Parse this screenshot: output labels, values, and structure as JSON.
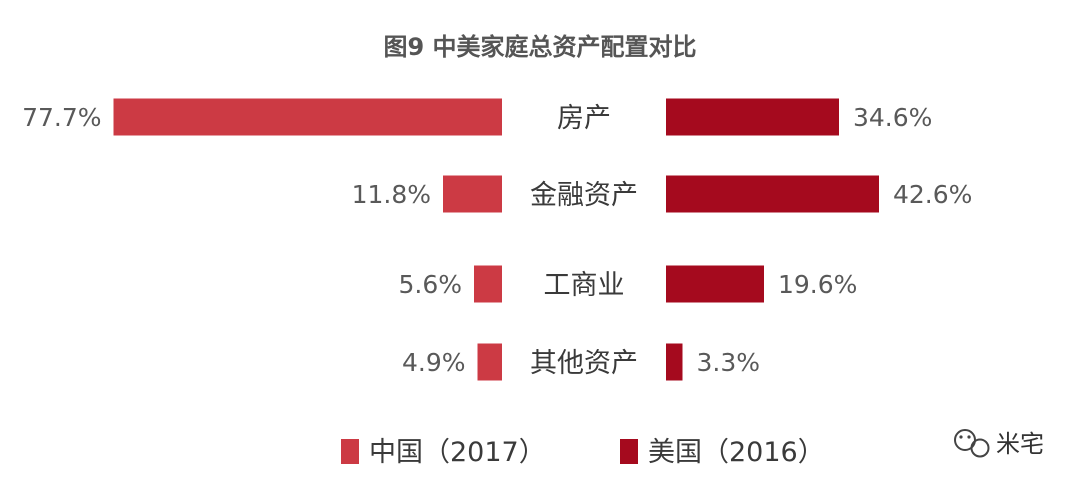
{
  "chart_data": {
    "type": "bar",
    "orientation": "horizontal-butterfly",
    "title": "图9 中美家庭总资产配置对比",
    "categories": [
      "房产",
      "金融资产",
      "工商业",
      "其他资产"
    ],
    "series": [
      {
        "name": "中国（2017）",
        "values": [
          77.7,
          11.8,
          5.6,
          4.9
        ],
        "labels": [
          "77.7%",
          "11.8%",
          "5.6%",
          "4.9%"
        ],
        "color": "#cc3a44"
      },
      {
        "name": "美国（2016）",
        "values": [
          34.6,
          42.6,
          19.6,
          3.3
        ],
        "labels": [
          "34.6%",
          "42.6%",
          "19.6%",
          "3.3%"
        ],
        "color": "#a50a1e"
      }
    ],
    "unit": "%",
    "grid": false,
    "legend_position": "bottom-center"
  },
  "watermark": {
    "text": "米宅",
    "icon": "wechat-icon"
  }
}
